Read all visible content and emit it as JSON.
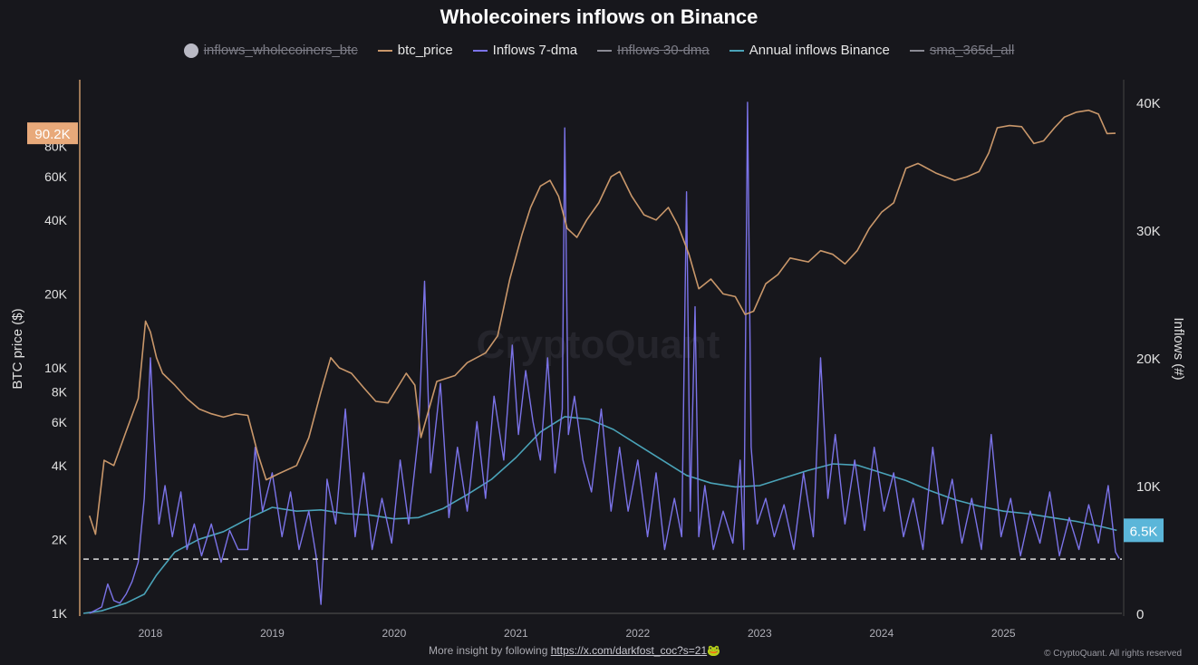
{
  "chart_data": {
    "type": "line",
    "title": "Wholecoiners inflows on Binance",
    "legend": [
      {
        "name": "inflows_wholecoiners_btc",
        "color": "#b9b9c4",
        "enabled": false,
        "marker": "dot"
      },
      {
        "name": "btc_price",
        "color": "#c9976a",
        "enabled": true
      },
      {
        "name": "Inflows 7-dma",
        "color": "#7b73e8",
        "enabled": true
      },
      {
        "name": "Inflows 30-dma",
        "color": "#8a8a94",
        "enabled": false
      },
      {
        "name": "Annual inflows Binance",
        "color": "#4aa3b8",
        "enabled": true
      },
      {
        "name": "sma_365d_all",
        "color": "#8a8a94",
        "enabled": false
      }
    ],
    "legend_position": "top",
    "ylabel_left": "BTC price ($)",
    "ylabel_right": "Inflows (#)",
    "left_axis": {
      "scale": "log",
      "range": [
        1000,
        100000
      ],
      "ticks": [
        1000,
        2000,
        4000,
        6000,
        8000,
        10000,
        20000,
        40000,
        60000,
        80000
      ],
      "tick_labels": [
        "1K",
        "2K",
        "4K",
        "6K",
        "8K",
        "10K",
        "20K",
        "40K",
        "60K",
        "80K"
      ]
    },
    "right_axis": {
      "scale": "linear",
      "range": [
        0,
        40000
      ],
      "ticks": [
        0,
        10000,
        20000,
        30000,
        40000
      ],
      "tick_labels": [
        "0",
        "10K",
        "20K",
        "30K",
        "40K"
      ]
    },
    "x_axis": {
      "range": [
        2017.45,
        2025.95
      ],
      "ticks": [
        2018,
        2019,
        2020,
        2021,
        2022,
        2023,
        2024,
        2025
      ],
      "tick_labels": [
        "2018",
        "2019",
        "2020",
        "2021",
        "2022",
        "2023",
        "2024",
        "2025"
      ]
    },
    "grid": false,
    "watermark": "CryptoQuant",
    "current_price_badge": {
      "label": "90.2K",
      "value": 90200,
      "color": "#e8a97a"
    },
    "current_annual_badge": {
      "label": "6.5K",
      "value": 6500,
      "color": "#5bb6d9"
    },
    "reference_line": {
      "axis": "right",
      "value": 4250,
      "style": "dashed",
      "color": "#dddddd"
    },
    "series": [
      {
        "name": "btc_price",
        "axis": "left",
        "color": "#c9976a",
        "x": [
          2017.5,
          2017.55,
          2017.62,
          2017.7,
          2017.8,
          2017.9,
          2017.96,
          2018.0,
          2018.05,
          2018.1,
          2018.2,
          2018.3,
          2018.4,
          2018.5,
          2018.6,
          2018.7,
          2018.8,
          2018.88,
          2018.95,
          2019.05,
          2019.2,
          2019.3,
          2019.4,
          2019.48,
          2019.55,
          2019.65,
          2019.75,
          2019.85,
          2019.95,
          2020.1,
          2020.17,
          2020.22,
          2020.35,
          2020.5,
          2020.6,
          2020.75,
          2020.85,
          2020.95,
          2021.05,
          2021.12,
          2021.2,
          2021.28,
          2021.35,
          2021.42,
          2021.5,
          2021.58,
          2021.68,
          2021.78,
          2021.85,
          2021.95,
          2022.05,
          2022.15,
          2022.25,
          2022.33,
          2022.42,
          2022.5,
          2022.6,
          2022.7,
          2022.8,
          2022.88,
          2022.95,
          2023.05,
          2023.15,
          2023.25,
          2023.4,
          2023.5,
          2023.6,
          2023.7,
          2023.8,
          2023.9,
          2024.0,
          2024.1,
          2024.2,
          2024.3,
          2024.45,
          2024.6,
          2024.7,
          2024.8,
          2024.88,
          2024.95,
          2025.05,
          2025.15,
          2025.25,
          2025.33,
          2025.42,
          2025.5,
          2025.6,
          2025.7,
          2025.78,
          2025.85,
          2025.92
        ],
        "values": [
          2500,
          2100,
          4200,
          4000,
          5500,
          7500,
          15500,
          14000,
          11000,
          9500,
          8500,
          7500,
          6800,
          6500,
          6300,
          6500,
          6400,
          4500,
          3500,
          3700,
          4000,
          5200,
          8000,
          11000,
          10000,
          9500,
          8300,
          7300,
          7200,
          9500,
          8500,
          5200,
          8800,
          9300,
          10500,
          11500,
          13500,
          23000,
          35000,
          45000,
          55000,
          58000,
          50000,
          37000,
          34000,
          40000,
          47000,
          60000,
          63000,
          50000,
          42000,
          40000,
          45000,
          38000,
          29000,
          21000,
          23000,
          20000,
          19500,
          16500,
          17000,
          22000,
          24000,
          28000,
          27000,
          30000,
          29000,
          26500,
          30000,
          37000,
          43000,
          47000,
          65000,
          68000,
          62000,
          58000,
          60000,
          63000,
          75000,
          95000,
          97000,
          96000,
          82000,
          84000,
          95000,
          105000,
          110000,
          112000,
          108000,
          90000,
          90200
        ]
      },
      {
        "name": "Inflows 7-dma",
        "axis": "right",
        "color": "#7b73e8",
        "x": [
          2017.5,
          2017.6,
          2017.65,
          2017.7,
          2017.75,
          2017.8,
          2017.85,
          2017.9,
          2017.95,
          2018.0,
          2018.03,
          2018.07,
          2018.12,
          2018.18,
          2018.25,
          2018.3,
          2018.36,
          2018.42,
          2018.5,
          2018.58,
          2018.65,
          2018.72,
          2018.8,
          2018.86,
          2018.92,
          2019.0,
          2019.08,
          2019.15,
          2019.22,
          2019.3,
          2019.36,
          2019.4,
          2019.45,
          2019.52,
          2019.6,
          2019.68,
          2019.75,
          2019.82,
          2019.9,
          2019.98,
          2020.05,
          2020.12,
          2020.2,
          2020.25,
          2020.3,
          2020.38,
          2020.45,
          2020.52,
          2020.6,
          2020.68,
          2020.75,
          2020.82,
          2020.9,
          2020.97,
          2021.02,
          2021.08,
          2021.14,
          2021.2,
          2021.26,
          2021.32,
          2021.38,
          2021.4,
          2021.43,
          2021.48,
          2021.55,
          2021.62,
          2021.7,
          2021.78,
          2021.85,
          2021.92,
          2022.0,
          2022.08,
          2022.15,
          2022.22,
          2022.3,
          2022.36,
          2022.4,
          2022.43,
          2022.47,
          2022.5,
          2022.55,
          2022.62,
          2022.7,
          2022.78,
          2022.84,
          2022.87,
          2022.9,
          2022.93,
          2022.98,
          2023.05,
          2023.12,
          2023.2,
          2023.28,
          2023.36,
          2023.44,
          2023.5,
          2023.56,
          2023.62,
          2023.7,
          2023.78,
          2023.86,
          2023.94,
          2024.02,
          2024.1,
          2024.18,
          2024.26,
          2024.34,
          2024.42,
          2024.5,
          2024.58,
          2024.66,
          2024.74,
          2024.82,
          2024.9,
          2024.98,
          2025.06,
          2025.14,
          2025.22,
          2025.3,
          2025.38,
          2025.46,
          2025.54,
          2025.62,
          2025.7,
          2025.78,
          2025.86,
          2025.92,
          2025.95
        ],
        "values": [
          0,
          500,
          2300,
          1000,
          800,
          1500,
          2500,
          4000,
          9000,
          20000,
          14000,
          7000,
          10000,
          6000,
          9500,
          5000,
          7000,
          4500,
          7000,
          4000,
          6500,
          5000,
          5000,
          13000,
          8000,
          11000,
          6000,
          9500,
          5000,
          8000,
          4500,
          700,
          10500,
          7000,
          16000,
          6000,
          11000,
          5000,
          9000,
          5500,
          12000,
          7000,
          14000,
          26000,
          11000,
          18000,
          7500,
          13000,
          8000,
          15000,
          9000,
          17000,
          12000,
          21000,
          14000,
          19000,
          15000,
          12000,
          20000,
          11000,
          16000,
          38000,
          14000,
          17000,
          12000,
          9500,
          16000,
          8000,
          13000,
          8000,
          12000,
          6000,
          11000,
          5000,
          9000,
          6000,
          33000,
          8000,
          24000,
          6000,
          10000,
          5000,
          8000,
          5500,
          12000,
          5000,
          40000,
          13000,
          7000,
          9000,
          6000,
          8500,
          5000,
          11000,
          6000,
          20000,
          9000,
          14000,
          7000,
          12000,
          6500,
          13000,
          8000,
          11000,
          6000,
          9000,
          5000,
          13000,
          7000,
          10500,
          5500,
          9000,
          5000,
          14000,
          6000,
          9000,
          4500,
          8000,
          5500,
          9500,
          4500,
          7500,
          5000,
          8500,
          5500,
          10000,
          4800,
          4300
        ]
      },
      {
        "name": "Annual inflows Binance",
        "axis": "right",
        "color": "#4aa3b8",
        "x": [
          2017.45,
          2017.6,
          2017.8,
          2017.95,
          2018.05,
          2018.2,
          2018.4,
          2018.6,
          2018.8,
          2019.0,
          2019.2,
          2019.4,
          2019.6,
          2019.8,
          2020.0,
          2020.2,
          2020.4,
          2020.6,
          2020.8,
          2021.0,
          2021.2,
          2021.4,
          2021.6,
          2021.8,
          2022.0,
          2022.2,
          2022.4,
          2022.6,
          2022.8,
          2023.0,
          2023.2,
          2023.4,
          2023.6,
          2023.8,
          2024.0,
          2024.2,
          2024.4,
          2024.6,
          2024.8,
          2025.0,
          2025.2,
          2025.4,
          2025.6,
          2025.8,
          2025.93
        ],
        "values": [
          0,
          200,
          800,
          1500,
          3000,
          4800,
          5800,
          6400,
          7400,
          8300,
          8000,
          8100,
          7800,
          7700,
          7400,
          7500,
          8200,
          9300,
          10500,
          12200,
          14200,
          15400,
          15200,
          14400,
          13200,
          12000,
          10800,
          10200,
          9900,
          10000,
          10600,
          11200,
          11700,
          11600,
          11000,
          10400,
          9600,
          8900,
          8400,
          8000,
          7800,
          7500,
          7200,
          6800,
          6500
        ]
      }
    ]
  },
  "footer": {
    "text": "More insight by following ",
    "link": "https://x.com/darkfost_coc?s=21",
    "emoji": "🐸"
  },
  "copyright": "© CryptoQuant. All rights reserved"
}
